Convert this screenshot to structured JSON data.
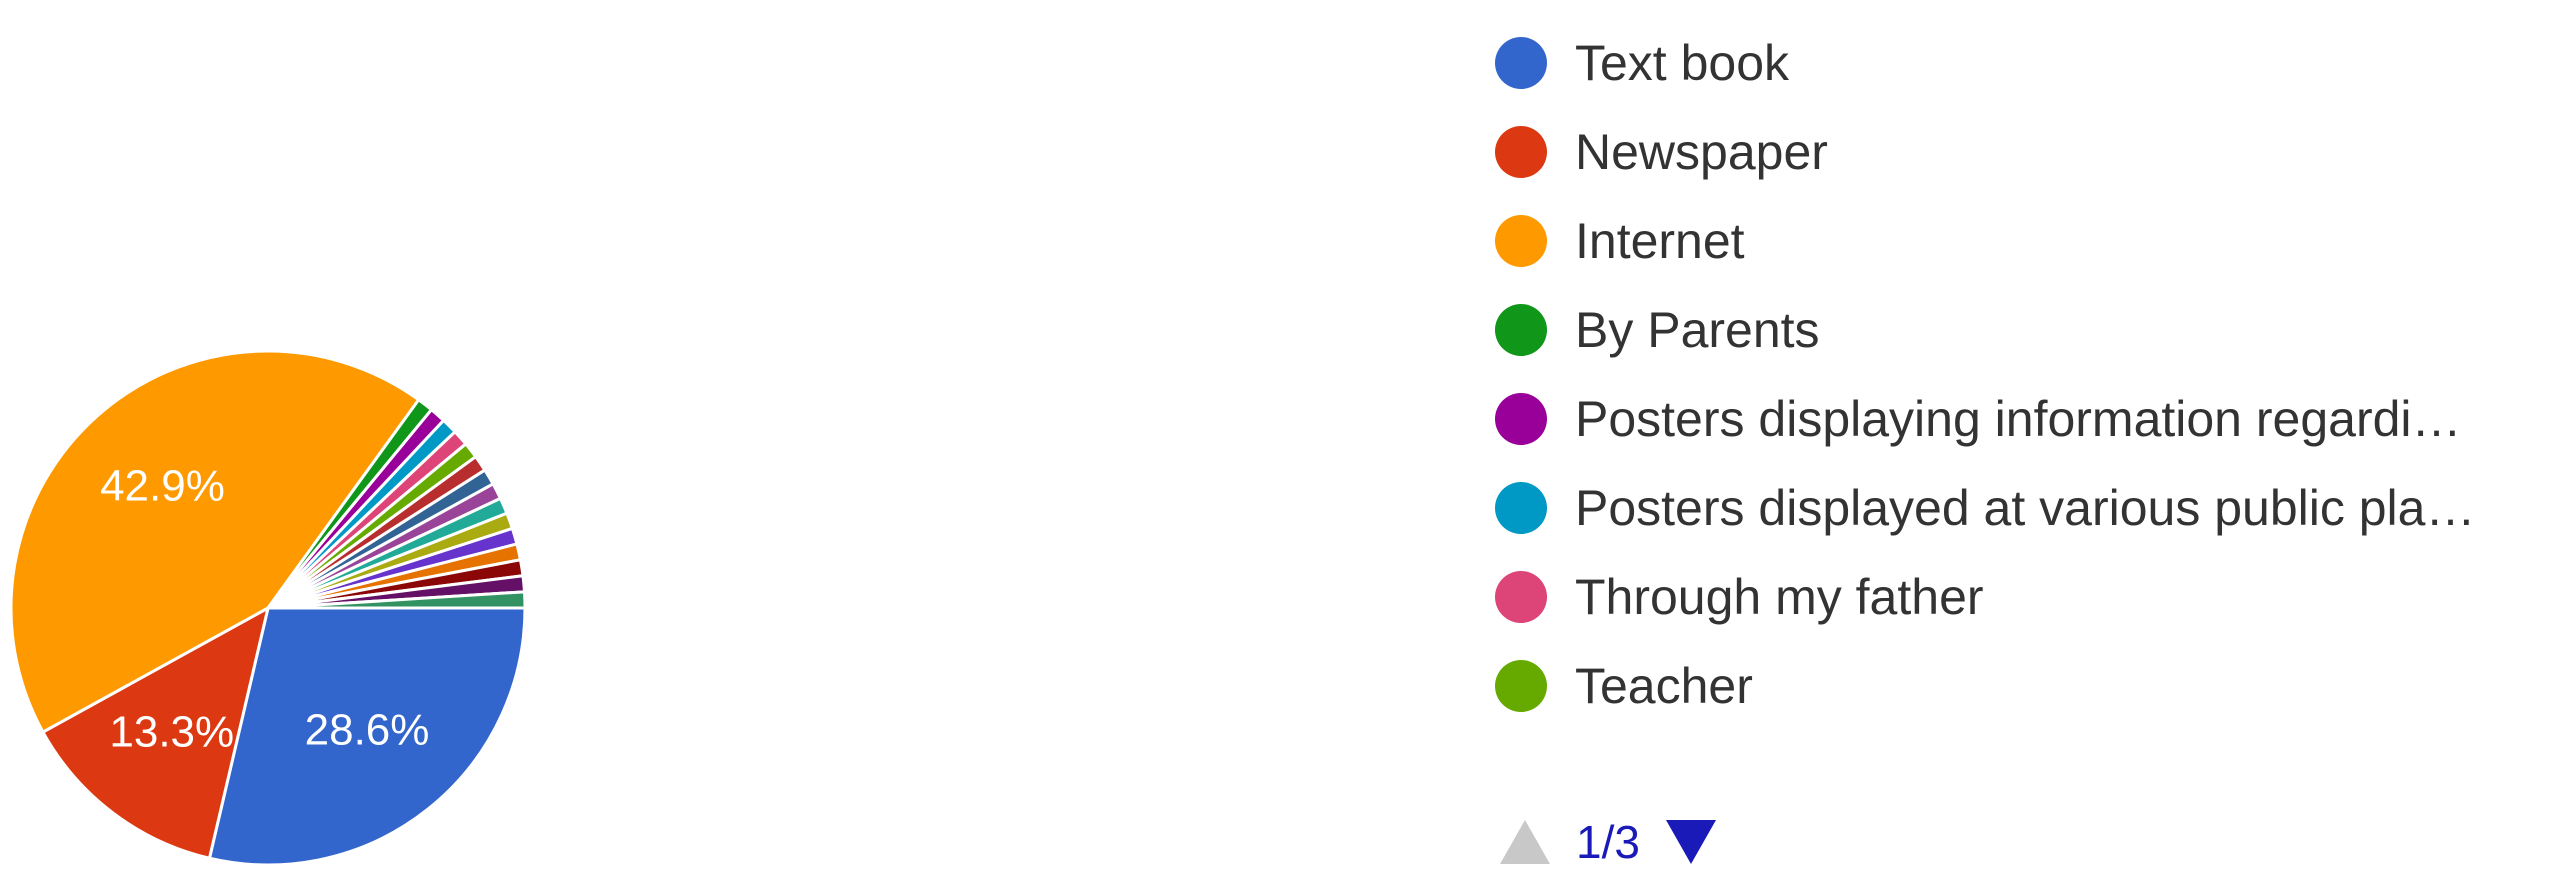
{
  "chart_data": {
    "type": "pie",
    "slices": [
      {
        "label": "Text book",
        "value": 28.6,
        "value_label": "28.6%",
        "color": "#3366cc"
      },
      {
        "label": "Newspaper",
        "value": 13.3,
        "value_label": "13.3%",
        "color": "#dc3912"
      },
      {
        "label": "Internet",
        "value": 42.9,
        "value_label": "42.9%",
        "color": "#ff9900"
      },
      {
        "label": "By Parents",
        "value": 1.0,
        "color": "#109618"
      },
      {
        "label": "Posters displaying information regardi…",
        "value": 1.0,
        "color": "#990099"
      },
      {
        "label": "Posters displayed at various public pla…",
        "value": 1.0,
        "color": "#0099c6"
      },
      {
        "label": "Through my father",
        "value": 1.0,
        "color": "#dd4477"
      },
      {
        "label": "Teacher",
        "value": 1.0,
        "color": "#66aa00"
      },
      {
        "value": 1.0,
        "color": "#b82e2e"
      },
      {
        "value": 1.0,
        "color": "#316395"
      },
      {
        "value": 1.0,
        "color": "#994499"
      },
      {
        "value": 1.0,
        "color": "#22aa99"
      },
      {
        "value": 1.0,
        "color": "#aaaa11"
      },
      {
        "value": 1.0,
        "color": "#6633cc"
      },
      {
        "value": 1.0,
        "color": "#e67300"
      },
      {
        "value": 1.0,
        "color": "#8b0707"
      },
      {
        "value": 1.0,
        "color": "#651067"
      },
      {
        "value": 1.0,
        "color": "#329262"
      }
    ],
    "legend": "right"
  },
  "legend_items": [
    {
      "label": "Text book",
      "color": "#3366cc"
    },
    {
      "label": "Newspaper",
      "color": "#dc3912"
    },
    {
      "label": "Internet",
      "color": "#ff9900"
    },
    {
      "label": "By Parents",
      "color": "#109618"
    },
    {
      "label": "Posters displaying information regardi…",
      "color": "#990099"
    },
    {
      "label": "Posters displayed at various public pla…",
      "color": "#0099c6"
    },
    {
      "label": "Through my father",
      "color": "#dd4477"
    },
    {
      "label": "Teacher",
      "color": "#66aa00"
    }
  ],
  "pager": {
    "text": "1/3",
    "prev_icon": "triangle-up-icon",
    "next_icon": "triangle-down-icon",
    "prev_color": "#c8c8c8",
    "next_color": "#1a1ab8"
  }
}
